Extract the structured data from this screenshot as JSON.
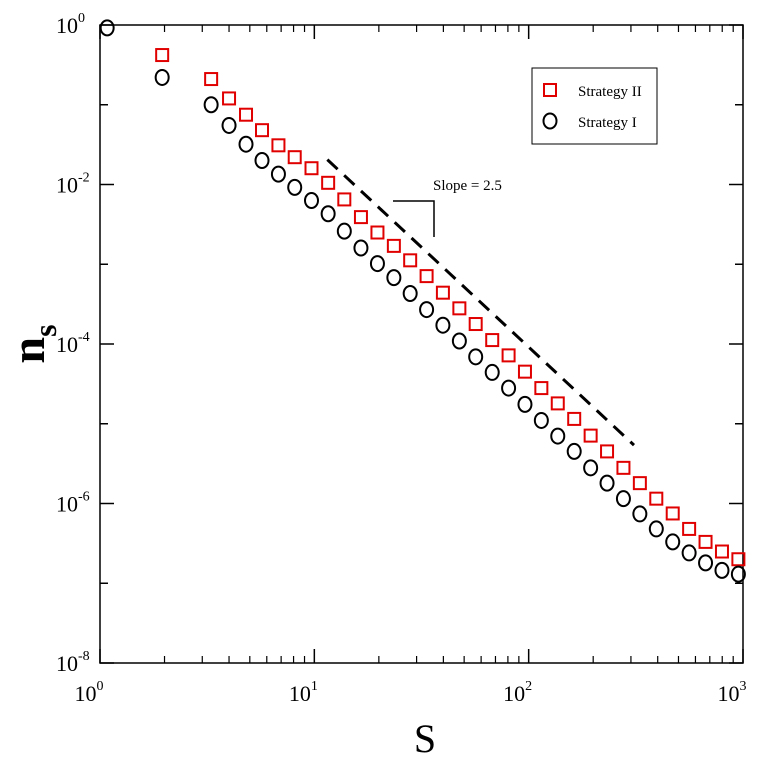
{
  "chart_data": {
    "type": "scatter",
    "x_scale": "log",
    "y_scale": "log",
    "xlim": [
      1,
      1000
    ],
    "ylim": [
      1e-08,
      1
    ],
    "xlabel": "S",
    "ylabel": {
      "base": "n",
      "subscript": "s"
    },
    "x_ticks": [
      {
        "base": "10",
        "exp": "0",
        "value": 1
      },
      {
        "base": "10",
        "exp": "1",
        "value": 10
      },
      {
        "base": "10",
        "exp": "2",
        "value": 100
      },
      {
        "base": "10",
        "exp": "3",
        "value": 1000
      }
    ],
    "y_ticks": [
      {
        "base": "10",
        "exp": "-8",
        "value": 1e-08
      },
      {
        "base": "10",
        "exp": "-6",
        "value": 1e-06
      },
      {
        "base": "10",
        "exp": "-4",
        "value": 0.0001
      },
      {
        "base": "10",
        "exp": "-2",
        "value": 0.01
      },
      {
        "base": "10",
        "exp": "0",
        "value": 1
      }
    ],
    "legend_position": "top-right",
    "series": [
      {
        "name": "Strategy II",
        "marker": "square",
        "color": "#e00000",
        "points": [
          [
            1.95,
            0.42
          ],
          [
            3.3,
            0.21
          ],
          [
            4.0,
            0.12
          ],
          [
            4.8,
            0.075
          ],
          [
            5.7,
            0.048
          ],
          [
            6.8,
            0.031
          ],
          [
            8.1,
            0.022
          ],
          [
            9.7,
            0.016
          ],
          [
            11.6,
            0.0105
          ],
          [
            13.8,
            0.0065
          ],
          [
            16.5,
            0.0039
          ],
          [
            19.7,
            0.0025
          ],
          [
            23.5,
            0.0017
          ],
          [
            28.0,
            0.00112
          ],
          [
            33.4,
            0.00071
          ],
          [
            39.8,
            0.00044
          ],
          [
            47.5,
            0.00028
          ],
          [
            56.6,
            0.000178
          ],
          [
            67.6,
            0.000112
          ],
          [
            80.6,
            7.2e-05
          ],
          [
            96.1,
            4.5e-05
          ],
          [
            114.6,
            2.8e-05
          ],
          [
            136.7,
            1.8e-05
          ],
          [
            163.1,
            1.15e-05
          ],
          [
            194.6,
            7.1e-06
          ],
          [
            232.1,
            4.5e-06
          ],
          [
            276.8,
            2.8e-06
          ],
          [
            330.2,
            1.8e-06
          ],
          [
            394,
            1.15e-06
          ],
          [
            470,
            7.5e-07
          ],
          [
            560.6,
            4.8e-07
          ],
          [
            668.7,
            3.3e-07
          ],
          [
            797.8,
            2.5e-07
          ],
          [
            951.6,
            2e-07
          ]
        ]
      },
      {
        "name": "Strategy I",
        "marker": "circle",
        "color": "#000000",
        "points": [
          [
            1.08,
            0.92
          ],
          [
            1.95,
            0.22
          ],
          [
            3.3,
            0.1
          ],
          [
            4.0,
            0.055
          ],
          [
            4.8,
            0.032
          ],
          [
            5.7,
            0.02
          ],
          [
            6.8,
            0.0135
          ],
          [
            8.1,
            0.0092
          ],
          [
            9.7,
            0.0063
          ],
          [
            11.6,
            0.0043
          ],
          [
            13.8,
            0.0026
          ],
          [
            16.5,
            0.0016
          ],
          [
            19.7,
            0.00102
          ],
          [
            23.5,
            0.00068
          ],
          [
            28.0,
            0.00043
          ],
          [
            33.4,
            0.00027
          ],
          [
            39.8,
            0.000172
          ],
          [
            47.5,
            0.000109
          ],
          [
            56.6,
            6.9e-05
          ],
          [
            67.6,
            4.4e-05
          ],
          [
            80.6,
            2.8e-05
          ],
          [
            96.1,
            1.75e-05
          ],
          [
            114.6,
            1.1e-05
          ],
          [
            136.7,
            7e-06
          ],
          [
            163.1,
            4.5e-06
          ],
          [
            194.6,
            2.8e-06
          ],
          [
            232.1,
            1.8e-06
          ],
          [
            276.8,
            1.15e-06
          ],
          [
            330.2,
            7.4e-07
          ],
          [
            394,
            4.8e-07
          ],
          [
            470,
            3.3e-07
          ],
          [
            560.6,
            2.4e-07
          ],
          [
            668.7,
            1.8e-07
          ],
          [
            797.8,
            1.45e-07
          ],
          [
            951.6,
            1.3e-07
          ]
        ]
      }
    ],
    "reference_line": {
      "style": "dashed",
      "slope": -2.5,
      "from": [
        11.5,
        0.0205
      ],
      "to": [
        310,
        5.4e-06
      ]
    },
    "annotations": [
      {
        "text": "Slope = 2.5"
      }
    ]
  }
}
